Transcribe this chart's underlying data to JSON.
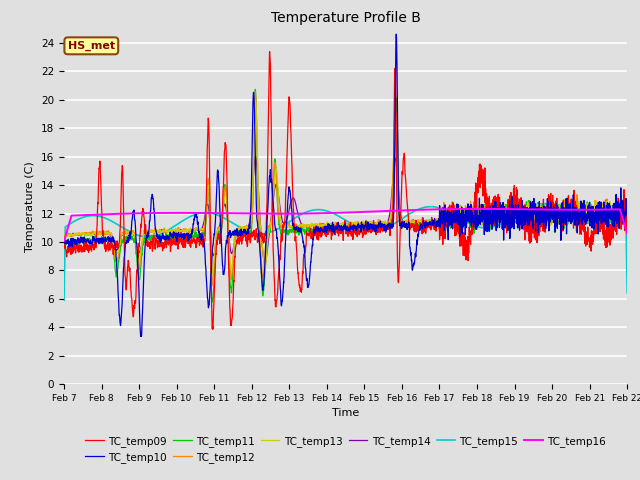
{
  "title": "Temperature Profile B",
  "xlabel": "Time",
  "ylabel": "Temperature (C)",
  "ylim": [
    0,
    25
  ],
  "xlim_days": [
    7,
    22
  ],
  "background_color": "#e0e0e0",
  "plot_bg_color": "#e0e0e0",
  "grid_color": "#ffffff",
  "annotation_text": "HS_met",
  "annotation_bg": "#ffff99",
  "annotation_border": "#8b4513",
  "series_colors": {
    "TC_temp09": "#ff0000",
    "TC_temp10": "#0000cc",
    "TC_temp11": "#00cc00",
    "TC_temp12": "#ff8800",
    "TC_temp13": "#cccc00",
    "TC_temp14": "#8800aa",
    "TC_temp15": "#00cccc",
    "TC_temp16": "#ff00ff"
  },
  "xtick_labels": [
    "Feb 7",
    "Feb 8",
    "Feb 9",
    "Feb 10",
    "Feb 11",
    "Feb 12",
    "Feb 13",
    "Feb 14",
    "Feb 15",
    "Feb 16",
    "Feb 17",
    "Feb 18",
    "Feb 19",
    "Feb 20",
    "Feb 21",
    "Feb 22"
  ],
  "xtick_positions": [
    7,
    8,
    9,
    10,
    11,
    12,
    13,
    14,
    15,
    16,
    17,
    18,
    19,
    20,
    21,
    22
  ],
  "ytick_positions": [
    0,
    2,
    4,
    6,
    8,
    10,
    12,
    14,
    16,
    18,
    20,
    22,
    24
  ]
}
